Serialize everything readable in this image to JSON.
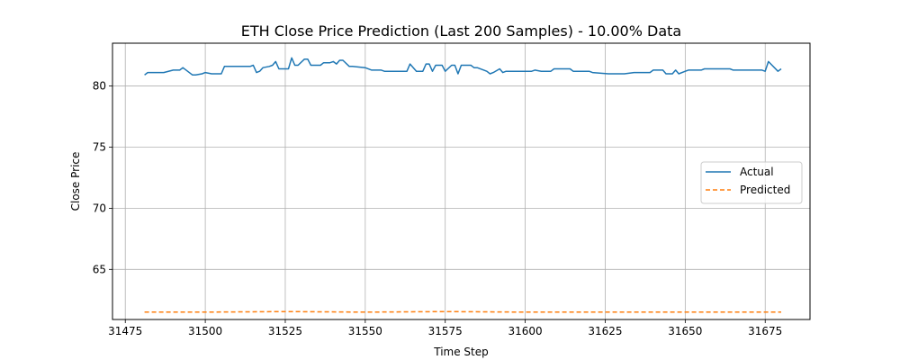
{
  "chart_data": {
    "type": "line",
    "title": "ETH Close Price Prediction (Last 200 Samples) - 10.00% Data",
    "xlabel": "Time Step",
    "ylabel": "Close Price",
    "xlim": [
      31471,
      31689
    ],
    "ylim": [
      60.9,
      83.5
    ],
    "xticks": [
      31475,
      31500,
      31525,
      31550,
      31575,
      31600,
      31625,
      31650,
      31675
    ],
    "yticks": [
      65,
      70,
      75,
      80
    ],
    "grid": true,
    "legend_position": "center-right",
    "series": [
      {
        "name": "Actual",
        "color": "#1f77b4",
        "style": "solid",
        "x": [
          31481,
          31482,
          31485,
          31487,
          31490,
          31491,
          31492,
          31493,
          31496,
          31497,
          31499,
          31500,
          31502,
          31503,
          31505,
          31506,
          31510,
          31514,
          31515,
          31516,
          31517,
          31518,
          31520,
          31521,
          31522,
          31523,
          31526,
          31527,
          31528,
          31529,
          31531,
          31532,
          31533,
          31536,
          31537,
          31539,
          31540,
          31541,
          31542,
          31543,
          31545,
          31546,
          31550,
          31552,
          31555,
          31556,
          31560,
          31562,
          31563,
          31564,
          31566,
          31567,
          31568,
          31569,
          31570,
          31571,
          31572,
          31573,
          31574,
          31575,
          31577,
          31578,
          31579,
          31580,
          31582,
          31583,
          31584,
          31585,
          31588,
          31589,
          31590,
          31592,
          31593,
          31594,
          31596,
          31600,
          31602,
          31603,
          31605,
          31608,
          31609,
          31611,
          31614,
          31615,
          31619,
          31620,
          31621,
          31626,
          31627,
          31631,
          31634,
          31636,
          31639,
          31640,
          31641,
          31643,
          31644,
          31646,
          31647,
          31648,
          31650,
          31651,
          31653,
          31655,
          31656,
          31658,
          31664,
          31665,
          31671,
          31672,
          31673,
          31674,
          31675,
          31676,
          31679,
          31680
        ],
        "values": [
          80.9,
          81.1,
          81.1,
          81.1,
          81.3,
          81.3,
          81.3,
          81.5,
          80.9,
          80.9,
          81.0,
          81.1,
          81.0,
          81.0,
          81.0,
          81.6,
          81.6,
          81.6,
          81.7,
          81.1,
          81.2,
          81.5,
          81.6,
          81.7,
          82.0,
          81.4,
          81.4,
          82.3,
          81.7,
          81.7,
          82.2,
          82.2,
          81.7,
          81.7,
          81.9,
          81.9,
          82.0,
          81.8,
          82.1,
          82.1,
          81.6,
          81.6,
          81.5,
          81.3,
          81.3,
          81.2,
          81.2,
          81.2,
          81.2,
          81.8,
          81.2,
          81.2,
          81.2,
          81.8,
          81.8,
          81.2,
          81.7,
          81.7,
          81.7,
          81.2,
          81.7,
          81.7,
          81.0,
          81.7,
          81.7,
          81.7,
          81.5,
          81.5,
          81.2,
          81.0,
          81.1,
          81.4,
          81.1,
          81.2,
          81.2,
          81.2,
          81.2,
          81.3,
          81.2,
          81.2,
          81.4,
          81.4,
          81.4,
          81.2,
          81.2,
          81.2,
          81.1,
          81.0,
          81.0,
          81.0,
          81.1,
          81.1,
          81.1,
          81.3,
          81.3,
          81.3,
          81.0,
          81.0,
          81.3,
          81.0,
          81.2,
          81.3,
          81.3,
          81.3,
          81.4,
          81.4,
          81.4,
          81.3,
          81.3,
          81.3,
          81.3,
          81.3,
          81.2,
          82.0,
          81.2,
          81.4
        ],
        "note": ""
      },
      {
        "name": "Predicted",
        "color": "#ff7f0e",
        "style": "dashed",
        "x": [
          31481,
          31500,
          31525,
          31550,
          31575,
          31600,
          31625,
          31650,
          31675,
          31680
        ],
        "values": [
          61.5,
          61.5,
          61.55,
          61.5,
          61.55,
          61.5,
          61.5,
          61.5,
          61.5,
          61.5
        ]
      }
    ]
  }
}
